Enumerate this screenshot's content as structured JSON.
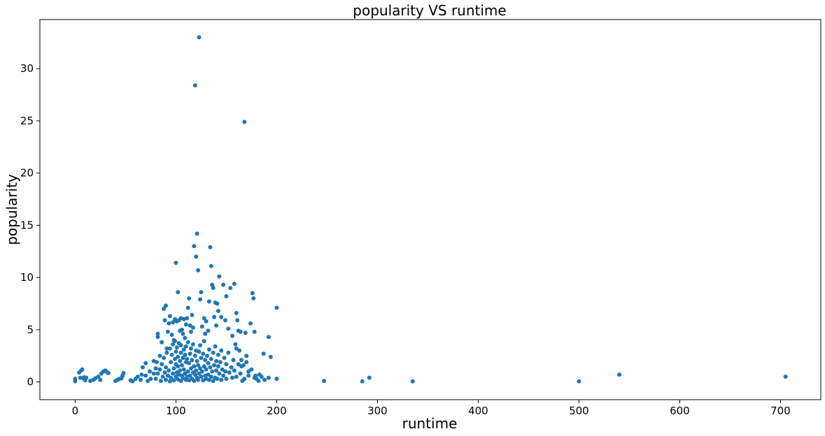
{
  "chart_data": {
    "type": "scatter",
    "title": "popularity VS runtime",
    "xlabel": "runtime",
    "ylabel": "popularity",
    "xlim": [
      -35,
      740
    ],
    "ylim": [
      -1.7,
      34.7
    ],
    "xticks": [
      0,
      100,
      200,
      300,
      400,
      500,
      600,
      700
    ],
    "xtick_labels": [
      "0",
      "100",
      "200",
      "300",
      "400",
      "500",
      "600",
      "700"
    ],
    "yticks": [
      0,
      5,
      10,
      15,
      20,
      25,
      30
    ],
    "ytick_labels": [
      "0",
      "5",
      "10",
      "15",
      "20",
      "25",
      "30"
    ],
    "grid": false,
    "legend": "none",
    "marker_color": "#1f77b4",
    "series": [
      {
        "points": [
          [
            0,
            0.3
          ],
          [
            0,
            0.05
          ],
          [
            4,
            0.9
          ],
          [
            5,
            0.4
          ],
          [
            6,
            1.1
          ],
          [
            7,
            1.2
          ],
          [
            8,
            0.35
          ],
          [
            9,
            0.45
          ],
          [
            10,
            0.15
          ],
          [
            11,
            0.4
          ],
          [
            15,
            0.1
          ],
          [
            18,
            0.2
          ],
          [
            20,
            0.35
          ],
          [
            23,
            0.5
          ],
          [
            25,
            0.2
          ],
          [
            26,
            0.8
          ],
          [
            28,
            1.0
          ],
          [
            30,
            1.1
          ],
          [
            32,
            0.9
          ],
          [
            33,
            0.85
          ],
          [
            40,
            0.1
          ],
          [
            42,
            0.2
          ],
          [
            44,
            0.3
          ],
          [
            46,
            0.35
          ],
          [
            47,
            0.6
          ],
          [
            48,
            0.85
          ],
          [
            55,
            0.15
          ],
          [
            57,
            0.05
          ],
          [
            60,
            0.3
          ],
          [
            62,
            0.5
          ],
          [
            65,
            0.2
          ],
          [
            66,
            0.7
          ],
          [
            67,
            1.4
          ],
          [
            70,
            0.6
          ],
          [
            70,
            1.8
          ],
          [
            72,
            0.1
          ],
          [
            74,
            1.0
          ],
          [
            75,
            0.3
          ],
          [
            78,
            0.8
          ],
          [
            78,
            2.0
          ],
          [
            80,
            1.3
          ],
          [
            81,
            1.9
          ],
          [
            82,
            4.3
          ],
          [
            82,
            4.6
          ],
          [
            84,
            2.5
          ],
          [
            86,
            3.8
          ],
          [
            88,
            7.0
          ],
          [
            89,
            5.9
          ],
          [
            90,
            7.3
          ],
          [
            91,
            3.2
          ],
          [
            92,
            4.8
          ],
          [
            93,
            5.6
          ],
          [
            94,
            6.3
          ],
          [
            96,
            4.5
          ],
          [
            97,
            5.7
          ],
          [
            98,
            4.0
          ],
          [
            99,
            6.0
          ],
          [
            100,
            11.4
          ],
          [
            101,
            5.8
          ],
          [
            102,
            8.6
          ],
          [
            103,
            5.9
          ],
          [
            104,
            4.9
          ],
          [
            105,
            6.1
          ],
          [
            106,
            5.0
          ],
          [
            107,
            4.6
          ],
          [
            108,
            6.0
          ],
          [
            109,
            4.2
          ],
          [
            110,
            5.5
          ],
          [
            111,
            6.1
          ],
          [
            112,
            7.1
          ],
          [
            113,
            8.0
          ],
          [
            114,
            5.4
          ],
          [
            115,
            4.8
          ],
          [
            116,
            6.4
          ],
          [
            117,
            5.2
          ],
          [
            118,
            13.0
          ],
          [
            119,
            28.4
          ],
          [
            120,
            12.0
          ],
          [
            121,
            14.2
          ],
          [
            122,
            10.7
          ],
          [
            123,
            33.0
          ],
          [
            124,
            7.9
          ],
          [
            125,
            8.6
          ],
          [
            126,
            5.3
          ],
          [
            128,
            6.1
          ],
          [
            129,
            4.6
          ],
          [
            130,
            5.8
          ],
          [
            132,
            4.9
          ],
          [
            133,
            7.7
          ],
          [
            134,
            12.9
          ],
          [
            135,
            11.1
          ],
          [
            136,
            9.3
          ],
          [
            137,
            9.0
          ],
          [
            138,
            6.2
          ],
          [
            139,
            7.6
          ],
          [
            140,
            5.4
          ],
          [
            141,
            7.5
          ],
          [
            142,
            6.8
          ],
          [
            143,
            10.1
          ],
          [
            145,
            6.2
          ],
          [
            147,
            9.3
          ],
          [
            149,
            5.9
          ],
          [
            150,
            8.2
          ],
          [
            152,
            5.1
          ],
          [
            154,
            9.0
          ],
          [
            156,
            4.4
          ],
          [
            158,
            9.4
          ],
          [
            159,
            3.6
          ],
          [
            160,
            6.6
          ],
          [
            161,
            5.9
          ],
          [
            162,
            4.9
          ],
          [
            163,
            3.0
          ],
          [
            164,
            4.8
          ],
          [
            165,
            2.1
          ],
          [
            166,
            0.1
          ],
          [
            167,
            1.6
          ],
          [
            168,
            24.9
          ],
          [
            169,
            4.7
          ],
          [
            170,
            2.5
          ],
          [
            172,
            1.0
          ],
          [
            174,
            5.6
          ],
          [
            176,
            8.5
          ],
          [
            177,
            8.0
          ],
          [
            178,
            4.8
          ],
          [
            179,
            0.6
          ],
          [
            180,
            0.3
          ],
          [
            182,
            0.1
          ],
          [
            185,
            0.5
          ],
          [
            187,
            2.7
          ],
          [
            192,
            4.3
          ],
          [
            194,
            2.4
          ],
          [
            200,
            7.1
          ],
          [
            200,
            0.3
          ],
          [
            80,
            0.3
          ],
          [
            82,
            0.8
          ],
          [
            84,
            1.2
          ],
          [
            85,
            0.1
          ],
          [
            86,
            1.7
          ],
          [
            87,
            0.5
          ],
          [
            88,
            2.3
          ],
          [
            89,
            0.9
          ],
          [
            90,
            0.2
          ],
          [
            90,
            1.4
          ],
          [
            91,
            2.8
          ],
          [
            92,
            0.6
          ],
          [
            93,
            1.1
          ],
          [
            94,
            3.2
          ],
          [
            94,
            0.05
          ],
          [
            95,
            1.9
          ],
          [
            95,
            0.4
          ],
          [
            96,
            2.6
          ],
          [
            97,
            0.8
          ],
          [
            97,
            3.6
          ],
          [
            98,
            1.3
          ],
          [
            98,
            0.15
          ],
          [
            99,
            2.2
          ],
          [
            99,
            3.9
          ],
          [
            100,
            0.5
          ],
          [
            100,
            1.7
          ],
          [
            100,
            2.9
          ],
          [
            101,
            0.9
          ],
          [
            101,
            3.3
          ],
          [
            102,
            0.25
          ],
          [
            102,
            1.5
          ],
          [
            102,
            2.4
          ],
          [
            103,
            0.7
          ],
          [
            103,
            3.7
          ],
          [
            104,
            1.1
          ],
          [
            104,
            2.0
          ],
          [
            105,
            0.1
          ],
          [
            105,
            2.8
          ],
          [
            105,
            3.5
          ],
          [
            106,
            0.6
          ],
          [
            106,
            1.6
          ],
          [
            107,
            2.3
          ],
          [
            107,
            0.35
          ],
          [
            108,
            3.1
          ],
          [
            108,
            1.2
          ],
          [
            109,
            0.8
          ],
          [
            109,
            2.6
          ],
          [
            110,
            0.2
          ],
          [
            110,
            1.9
          ],
          [
            110,
            3.4
          ],
          [
            111,
            0.5
          ],
          [
            111,
            2.2
          ],
          [
            112,
            1.0
          ],
          [
            112,
            3.8
          ],
          [
            113,
            0.15
          ],
          [
            113,
            1.8
          ],
          [
            114,
            2.7
          ],
          [
            114,
            0.6
          ],
          [
            115,
            1.3
          ],
          [
            115,
            3.2
          ],
          [
            116,
            0.3
          ],
          [
            116,
            2.1
          ],
          [
            117,
            0.9
          ],
          [
            117,
            3.6
          ],
          [
            118,
            1.5
          ],
          [
            118,
            0.1
          ],
          [
            119,
            2.5
          ],
          [
            119,
            0.7
          ],
          [
            120,
            1.1
          ],
          [
            120,
            3.0
          ],
          [
            121,
            0.4
          ],
          [
            121,
            2.0
          ],
          [
            122,
            1.6
          ],
          [
            122,
            0.2
          ],
          [
            123,
            2.9
          ],
          [
            123,
            0.8
          ],
          [
            124,
            1.3
          ],
          [
            124,
            3.5
          ],
          [
            125,
            0.5
          ],
          [
            125,
            2.3
          ],
          [
            126,
            1.0
          ],
          [
            127,
            0.15
          ],
          [
            127,
            2.7
          ],
          [
            128,
            1.5
          ],
          [
            128,
            3.9
          ],
          [
            129,
            0.6
          ],
          [
            129,
            2.1
          ],
          [
            130,
            0.3
          ],
          [
            130,
            1.2
          ],
          [
            131,
            2.5
          ],
          [
            132,
            0.7
          ],
          [
            132,
            1.8
          ],
          [
            133,
            3.1
          ],
          [
            133,
            0.2
          ],
          [
            134,
            1.4
          ],
          [
            135,
            2.2
          ],
          [
            135,
            0.5
          ],
          [
            136,
            1.0
          ],
          [
            137,
            2.8
          ],
          [
            137,
            0.1
          ],
          [
            138,
            1.6
          ],
          [
            139,
            0.4
          ],
          [
            139,
            3.4
          ],
          [
            140,
            1.1
          ],
          [
            140,
            2.0
          ],
          [
            141,
            0.3
          ],
          [
            142,
            1.5
          ],
          [
            142,
            2.6
          ],
          [
            143,
            0.8
          ],
          [
            144,
            1.9
          ],
          [
            145,
            0.2
          ],
          [
            145,
            3.0
          ],
          [
            146,
            1.2
          ],
          [
            147,
            0.6
          ],
          [
            148,
            2.3
          ],
          [
            149,
            1.0
          ],
          [
            150,
            0.3
          ],
          [
            150,
            1.7
          ],
          [
            152,
            2.8
          ],
          [
            153,
            0.9
          ],
          [
            155,
            1.4
          ],
          [
            156,
            0.4
          ],
          [
            157,
            2.1
          ],
          [
            158,
            1.1
          ],
          [
            160,
            0.5
          ],
          [
            160,
            3.2
          ],
          [
            162,
            1.7
          ],
          [
            164,
            0.8
          ],
          [
            165,
            1.5
          ],
          [
            168,
            0.3
          ],
          [
            170,
            1.9
          ],
          [
            172,
            0.6
          ],
          [
            175,
            1.2
          ],
          [
            178,
            0.4
          ],
          [
            183,
            0.7
          ],
          [
            188,
            0.2
          ],
          [
            192,
            0.4
          ],
          [
            247,
            0.1
          ],
          [
            285,
            0.05
          ],
          [
            292,
            0.4
          ],
          [
            335,
            0.05
          ],
          [
            500,
            0.05
          ],
          [
            540,
            0.7
          ],
          [
            705,
            0.5
          ]
        ]
      }
    ]
  }
}
